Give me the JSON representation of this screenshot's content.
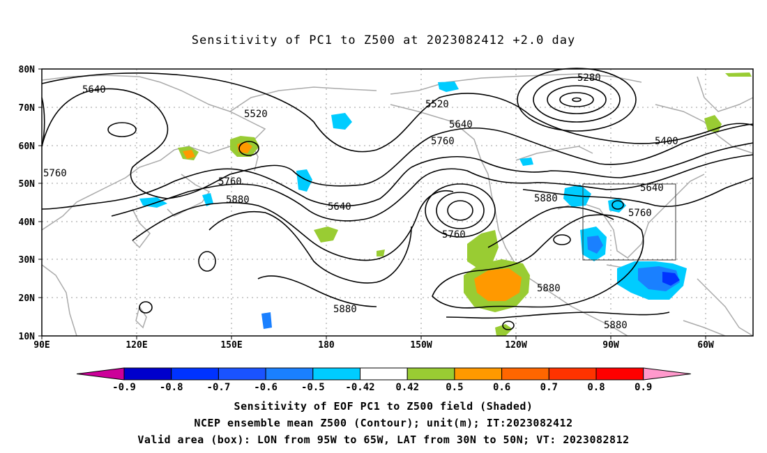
{
  "title": "Sensitivity of PC1 to Z500 at 2023082412 +2.0 day",
  "lat_ticks": [
    "80N",
    "70N",
    "60N",
    "50N",
    "40N",
    "30N",
    "20N",
    "10N"
  ],
  "lon_ticks": [
    "90E",
    "120E",
    "150E",
    "180",
    "150W",
    "120W",
    "90W",
    "60W"
  ],
  "contour_labels": [
    "5640",
    "5520",
    "5280",
    "5520",
    "5640",
    "5400",
    "5760",
    "5760",
    "5760",
    "5640",
    "5880",
    "5880",
    "5640",
    "5760",
    "5880",
    "5760",
    "5880",
    "5880"
  ],
  "colorbar": {
    "labels": [
      "-0.9",
      "-0.8",
      "-0.7",
      "-0.6",
      "-0.5",
      "-0.42",
      "0.42",
      "0.5",
      "0.6",
      "0.7",
      "0.8",
      "0.9"
    ],
    "colors": [
      "#cc0099",
      "#0000cc",
      "#0033ff",
      "#1a53ff",
      "#1a80ff",
      "#00ccff",
      "#ffffff",
      "#99cc33",
      "#ff9900",
      "#ff6600",
      "#ff3300",
      "#ff0000",
      "#ff99cc"
    ]
  },
  "valid_area": {
    "lon_from": "95W",
    "lon_to": "65W",
    "lat_from": "30N",
    "lat_to": "50N"
  },
  "captions": [
    "Sensitivity of EOF PC1 to Z500 field (Shaded)",
    "NCEP ensemble mean Z500 (Contour); unit(m); IT:2023082412",
    "Valid area (box): LON from 95W to 65W, LAT from 30N to 50N; VT: 2023082812"
  ]
}
